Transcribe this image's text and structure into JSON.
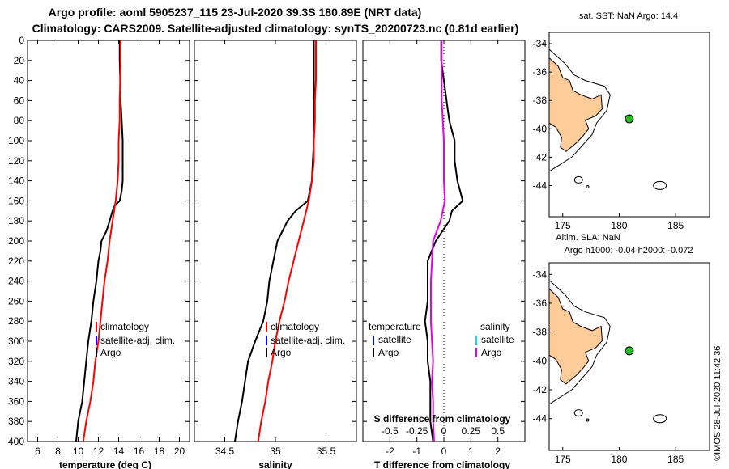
{
  "header": {
    "title_line1": "Argo profile: aoml 5905237_115 23-Jul-2020 39.3S 180.89E (NRT data)",
    "title_line2": "Climatology: CARS2009. Satellite-adjusted climatology: synTS_20200723.nc (0.81d earlier)"
  },
  "colors": {
    "argo": "#000000",
    "climatology": "#ff0000",
    "satellite": "#0000ff",
    "sat_salinity": "#00e5ff",
    "salinity_diff": "#e600e6",
    "land": "#fdcc99",
    "marker": "#22bb22"
  },
  "map_top": {
    "title": "sat. SST: NaN Argo: 14.4"
  },
  "map_bottom": {
    "title_line1": "Altim. SLA: NaN",
    "title_line2": "Argo h1000: -0.04 h2000: -0.072"
  },
  "maps": {
    "lon_ticks": [
      175,
      180,
      185
    ],
    "lat_ticks": [
      -34,
      -36,
      -38,
      -40,
      -42,
      -44
    ],
    "argo_position": {
      "lon": 180.89,
      "lat": -39.3
    }
  },
  "watermark": "©IMOS 28-Jul-2020 11:42:36",
  "chart_data": [
    {
      "type": "line",
      "name": "temperature",
      "xlabel": "temperature (deg C)",
      "ylabel": "",
      "xlim": [
        5,
        21
      ],
      "ylim": [
        400,
        0
      ],
      "xticks": [
        6,
        8,
        10,
        12,
        14,
        16,
        18,
        20
      ],
      "yticks": [
        0,
        20,
        40,
        60,
        80,
        100,
        120,
        140,
        160,
        180,
        200,
        220,
        240,
        260,
        280,
        300,
        320,
        340,
        360,
        380,
        400
      ],
      "legend": [
        "climatology",
        "satellite-adj. clim.",
        "Argo"
      ],
      "series": [
        {
          "name": "Argo",
          "depth": [
            0,
            20,
            40,
            60,
            80,
            100,
            120,
            140,
            150,
            160,
            165,
            170,
            180,
            190,
            200,
            210,
            220,
            240,
            260,
            280,
            300,
            320,
            340,
            360,
            380,
            400
          ],
          "values": [
            14.1,
            14.1,
            14.15,
            14.2,
            14.3,
            14.4,
            14.4,
            14.4,
            14.3,
            14.1,
            13.6,
            13.4,
            13.1,
            12.8,
            12.3,
            12.2,
            12.0,
            11.8,
            11.5,
            11.3,
            11.0,
            10.8,
            10.6,
            10.4,
            10.0,
            9.8
          ]
        },
        {
          "name": "climatology",
          "depth": [
            0,
            20,
            40,
            60,
            80,
            100,
            120,
            140,
            160,
            180,
            200,
            220,
            240,
            260,
            280,
            300,
            320,
            340,
            360,
            380,
            400
          ],
          "values": [
            14.2,
            14.2,
            14.15,
            14.1,
            14.1,
            14.0,
            14.0,
            13.9,
            13.7,
            13.4,
            13.1,
            12.9,
            12.6,
            12.4,
            12.2,
            12.0,
            11.7,
            11.5,
            11.2,
            10.8,
            10.5
          ]
        }
      ]
    },
    {
      "type": "line",
      "name": "salinity",
      "xlabel": "salinity",
      "ylabel": "",
      "xlim": [
        34.2,
        35.8
      ],
      "ylim": [
        400,
        0
      ],
      "xticks": [
        34.5,
        35,
        35.5
      ],
      "legend": [
        "climatology",
        "satellite-adj. clim.",
        "Argo"
      ],
      "series": [
        {
          "name": "Argo",
          "depth": [
            0,
            20,
            40,
            60,
            80,
            100,
            120,
            140,
            160,
            170,
            180,
            200,
            220,
            240,
            260,
            280,
            300,
            320,
            340,
            360,
            380,
            400
          ],
          "values": [
            35.38,
            35.38,
            35.38,
            35.38,
            35.38,
            35.38,
            35.37,
            35.36,
            35.32,
            35.2,
            35.12,
            35.02,
            34.98,
            34.94,
            34.92,
            34.88,
            34.8,
            34.73,
            34.7,
            34.67,
            34.63,
            34.6
          ]
        },
        {
          "name": "climatology",
          "depth": [
            0,
            20,
            40,
            60,
            80,
            100,
            120,
            140,
            160,
            180,
            200,
            220,
            240,
            260,
            280,
            300,
            320,
            340,
            360,
            380,
            400
          ],
          "values": [
            35.4,
            35.4,
            35.4,
            35.39,
            35.39,
            35.38,
            35.38,
            35.36,
            35.33,
            35.28,
            35.23,
            35.18,
            35.13,
            35.09,
            35.04,
            35.0,
            34.97,
            34.93,
            34.9,
            34.86,
            34.83
          ]
        }
      ]
    },
    {
      "type": "line",
      "name": "differences",
      "xlabel": "T difference from climatology",
      "xlabel_top": "S difference from climatology",
      "xlim": [
        -3,
        3
      ],
      "ylim": [
        400,
        0
      ],
      "xticks": [
        -2,
        -1,
        0,
        1,
        2
      ],
      "xticklabels_top": [
        "-0.5",
        "-0.25",
        "0",
        "0.25",
        "0.5"
      ],
      "legend_groups": [
        {
          "title": "temperature",
          "items": [
            "satellite",
            "Argo"
          ]
        },
        {
          "title": "salinity",
          "items": [
            "satellite",
            "Argo"
          ]
        }
      ],
      "series": [
        {
          "name": "T difference (Argo)",
          "depth": [
            0,
            20,
            40,
            60,
            80,
            100,
            120,
            140,
            150,
            160,
            170,
            180,
            200,
            220,
            240,
            260,
            280,
            300,
            320,
            340,
            360,
            380,
            400
          ],
          "values": [
            -0.1,
            -0.1,
            0,
            0.1,
            0.2,
            0.4,
            0.4,
            0.5,
            0.6,
            0.7,
            0.3,
            0.2,
            -0.3,
            -0.6,
            -0.6,
            -0.6,
            -0.7,
            -0.6,
            -0.6,
            -0.5,
            -0.5,
            -0.5,
            -0.4
          ]
        },
        {
          "name": "S difference (Argo)",
          "depth": [
            0,
            20,
            40,
            60,
            80,
            100,
            120,
            140,
            160,
            180,
            200,
            220,
            240,
            260,
            280,
            300,
            320,
            340,
            360,
            380,
            400
          ],
          "values": [
            -0.02,
            -0.02,
            -0.02,
            -0.02,
            -0.01,
            0,
            0,
            0,
            0.01,
            -0.03,
            -0.1,
            -0.11,
            -0.12,
            -0.12,
            -0.12,
            -0.11,
            -0.1,
            -0.11,
            -0.1,
            -0.1,
            -0.09
          ]
        }
      ]
    }
  ]
}
